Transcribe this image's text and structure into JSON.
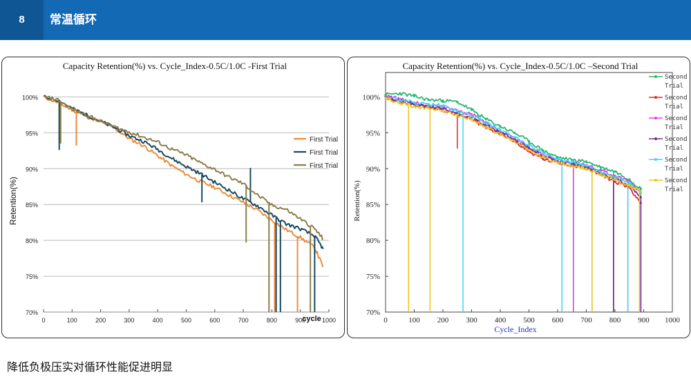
{
  "header": {
    "slide_number": "8",
    "title": "常温循环"
  },
  "caption": "降低负极压实对循环性能促进明显",
  "chart_data": [
    {
      "type": "line",
      "title": "Capacity Retention(%) vs. Cycle_Index-0.5C/1.0C -First Trial",
      "xlabel": "cycle",
      "ylabel": "Retention(%)",
      "xlim": [
        0,
        1000
      ],
      "ylim": [
        70,
        101
      ],
      "xticks": [
        "0",
        "100",
        "200",
        "300",
        "400",
        "500",
        "600",
        "700",
        "800",
        "900",
        "1000"
      ],
      "yticks": [
        "70%",
        "75%",
        "80%",
        "85%",
        "90%",
        "95%",
        "100%"
      ],
      "grid": "horizontal",
      "legend_position": "right",
      "series": [
        {
          "name": "First Trial",
          "color": "#ed8a3c",
          "x": [
            0,
            50,
            100,
            150,
            200,
            250,
            300,
            350,
            400,
            450,
            500,
            550,
            600,
            650,
            700,
            750,
            800,
            850,
            900,
            950,
            980
          ],
          "y": [
            100,
            99.2,
            98.2,
            97.3,
            96.5,
            95.6,
            94.2,
            93.2,
            91.8,
            90.4,
            89.2,
            88.2,
            87.4,
            86.3,
            85.3,
            84.2,
            82.8,
            81.5,
            80.4,
            79.0,
            76.3
          ],
          "drops": [
            [
              55,
              93.8
            ],
            [
              115,
              93.2
            ],
            [
              890,
              70
            ],
            [
              810,
              70
            ]
          ]
        },
        {
          "name": "First Trial",
          "color": "#17485f",
          "x": [
            0,
            50,
            100,
            150,
            200,
            250,
            300,
            350,
            400,
            450,
            500,
            550,
            600,
            650,
            700,
            750,
            800,
            850,
            900,
            950,
            980
          ],
          "y": [
            100,
            99.6,
            98.4,
            97.5,
            96.6,
            95.7,
            94.6,
            93.8,
            92.7,
            91.4,
            90.3,
            89.3,
            88.1,
            87.0,
            85.8,
            84.8,
            83.5,
            82.3,
            81.6,
            80.6,
            78.8
          ],
          "drops": [
            [
              55,
              92.6
            ],
            [
              555,
              85.3
            ],
            [
              725,
              90.1
            ],
            [
              815,
              70
            ],
            [
              830,
              70
            ],
            [
              950,
              70
            ]
          ]
        },
        {
          "name": "First Trial",
          "color": "#8c7d4a",
          "x": [
            0,
            50,
            100,
            150,
            200,
            250,
            300,
            350,
            400,
            450,
            500,
            550,
            600,
            650,
            700,
            750,
            800,
            850,
            900,
            950,
            980
          ],
          "y": [
            100,
            99.6,
            98.3,
            97.5,
            96.6,
            95.8,
            95.1,
            94.4,
            93.7,
            92.7,
            91.9,
            90.8,
            89.9,
            88.8,
            87.9,
            86.3,
            84.9,
            84.3,
            83.0,
            81.6,
            80.2
          ],
          "drops": [
            [
              60,
              93.5
            ],
            [
              710,
              79.7
            ],
            [
              790,
              70
            ],
            [
              935,
              70
            ]
          ]
        }
      ]
    },
    {
      "type": "line",
      "title": "Capacity Retention(%) vs. Cycle_Index-0.5C/1.0C –Second Trial",
      "xlabel": "Cycle_Index",
      "ylabel": "Retention(%)",
      "xlim": [
        0,
        1000
      ],
      "ylim": [
        70,
        101
      ],
      "xticks": [
        "0",
        "100",
        "200",
        "300",
        "400",
        "500",
        "600",
        "700",
        "800",
        "900",
        "1000"
      ],
      "yticks": [
        "70%",
        "75%",
        "80%",
        "85%",
        "90%",
        "95%",
        "100%"
      ],
      "grid": "off",
      "legend_position": "top-right",
      "series": [
        {
          "name": "Second Trial",
          "color": "#27b56f",
          "x": [
            0,
            50,
            100,
            150,
            200,
            250,
            300,
            350,
            400,
            450,
            500,
            550,
            600,
            650,
            700,
            750,
            800,
            850,
            890
          ],
          "y": [
            100.3,
            100.5,
            100.1,
            99.6,
            99.5,
            99.3,
            98.2,
            96.9,
            95.9,
            95.0,
            93.8,
            92.5,
            91.6,
            91.2,
            91.0,
            90.2,
            89.6,
            88.5,
            87.2
          ],
          "drops": [
            [
              615,
              70
            ],
            [
              655,
              70
            ],
            [
              720,
              70
            ],
            [
              795,
              70
            ],
            [
              890,
              70
            ]
          ]
        },
        {
          "name": "Second Trial",
          "color": "#e3242b",
          "x": [
            0,
            50,
            100,
            150,
            200,
            250,
            300,
            350,
            400,
            450,
            500,
            550,
            600,
            650,
            700,
            750,
            800,
            850,
            890
          ],
          "y": [
            100.0,
            99.4,
            98.9,
            98.6,
            98.2,
            97.5,
            96.9,
            95.8,
            94.8,
            93.8,
            92.4,
            91.3,
            90.8,
            90.5,
            90.1,
            89.2,
            88.2,
            87.4,
            85.2
          ],
          "drops": [
            [
              250,
              92.8
            ],
            [
              795,
              70
            ],
            [
              890,
              70
            ]
          ]
        },
        {
          "name": "Second Trial",
          "color": "#e63ee6",
          "x": [
            0,
            50,
            100,
            150,
            200,
            250,
            300,
            350,
            400,
            450,
            500,
            550,
            600,
            650,
            700,
            750,
            800,
            850,
            890
          ],
          "y": [
            100.1,
            99.7,
            99.2,
            98.8,
            98.6,
            98.1,
            97.6,
            96.5,
            95.2,
            94.3,
            93.0,
            92.0,
            91.2,
            90.8,
            90.5,
            89.8,
            89.0,
            88.2,
            86.6
          ],
          "drops": [
            [
              655,
              70
            ],
            [
              845,
              70
            ]
          ]
        },
        {
          "name": "Second Trial",
          "color": "#6b2f9e",
          "x": [
            0,
            50,
            100,
            150,
            200,
            250,
            300,
            350,
            400,
            450,
            500,
            550,
            600,
            650,
            700,
            750,
            800,
            850,
            890
          ],
          "y": [
            100.0,
            99.5,
            99.0,
            98.6,
            98.3,
            97.8,
            97.1,
            96.1,
            95.0,
            94.0,
            92.8,
            91.7,
            91.0,
            90.6,
            90.2,
            89.4,
            88.5,
            87.8,
            86.0
          ],
          "drops": [
            [
              795,
              70
            ],
            [
              890,
              70
            ]
          ]
        },
        {
          "name": "Second Trial",
          "color": "#3fd6ef",
          "x": [
            0,
            50,
            100,
            150,
            200,
            250,
            300,
            350,
            400,
            450,
            500,
            550,
            600,
            650,
            700,
            750,
            800,
            850,
            890
          ],
          "y": [
            99.9,
            99.6,
            99.2,
            98.9,
            98.8,
            98.0,
            97.4,
            96.4,
            95.4,
            94.4,
            93.3,
            92.2,
            91.3,
            90.9,
            90.4,
            89.5,
            88.8,
            88.0,
            86.6
          ],
          "drops": [
            [
              270,
              70
            ],
            [
              615,
              70
            ],
            [
              845,
              70
            ]
          ]
        },
        {
          "name": "Second Trial",
          "color": "#f4c21c",
          "x": [
            0,
            50,
            100,
            150,
            200,
            250,
            300,
            350,
            400,
            450,
            500,
            550,
            600,
            650,
            700,
            750,
            800,
            850,
            890
          ],
          "y": [
            99.8,
            99.1,
            98.7,
            98.4,
            98.1,
            97.5,
            96.9,
            95.8,
            94.7,
            93.8,
            92.6,
            91.6,
            90.8,
            90.4,
            90.0,
            89.2,
            88.5,
            87.6,
            86.8
          ],
          "drops": [
            [
              80,
              70
            ],
            [
              155,
              70
            ],
            [
              720,
              70
            ],
            [
              885,
              70
            ]
          ]
        }
      ]
    }
  ]
}
